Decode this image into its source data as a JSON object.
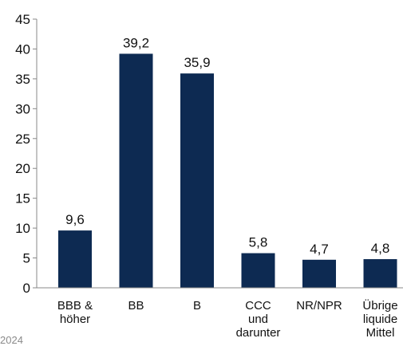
{
  "chart_data": {
    "type": "bar",
    "categories": [
      [
        "BBB &",
        "höher"
      ],
      [
        "BB"
      ],
      [
        "B"
      ],
      [
        "CCC",
        "und",
        "darunter"
      ],
      [
        "NR/NPR"
      ],
      [
        "Übrige",
        "liquide",
        "Mittel"
      ]
    ],
    "values": [
      9.6,
      39.2,
      35.9,
      5.8,
      4.7,
      4.8
    ],
    "value_labels": [
      "9,6",
      "39,2",
      "35,9",
      "5,8",
      "4,7",
      "4,8"
    ],
    "ylim": [
      0,
      45
    ],
    "yticks": [
      0,
      5,
      10,
      15,
      20,
      25,
      30,
      35,
      40,
      45
    ],
    "grid": false,
    "bar_color": "#0d2a52"
  },
  "footnote": "2024"
}
